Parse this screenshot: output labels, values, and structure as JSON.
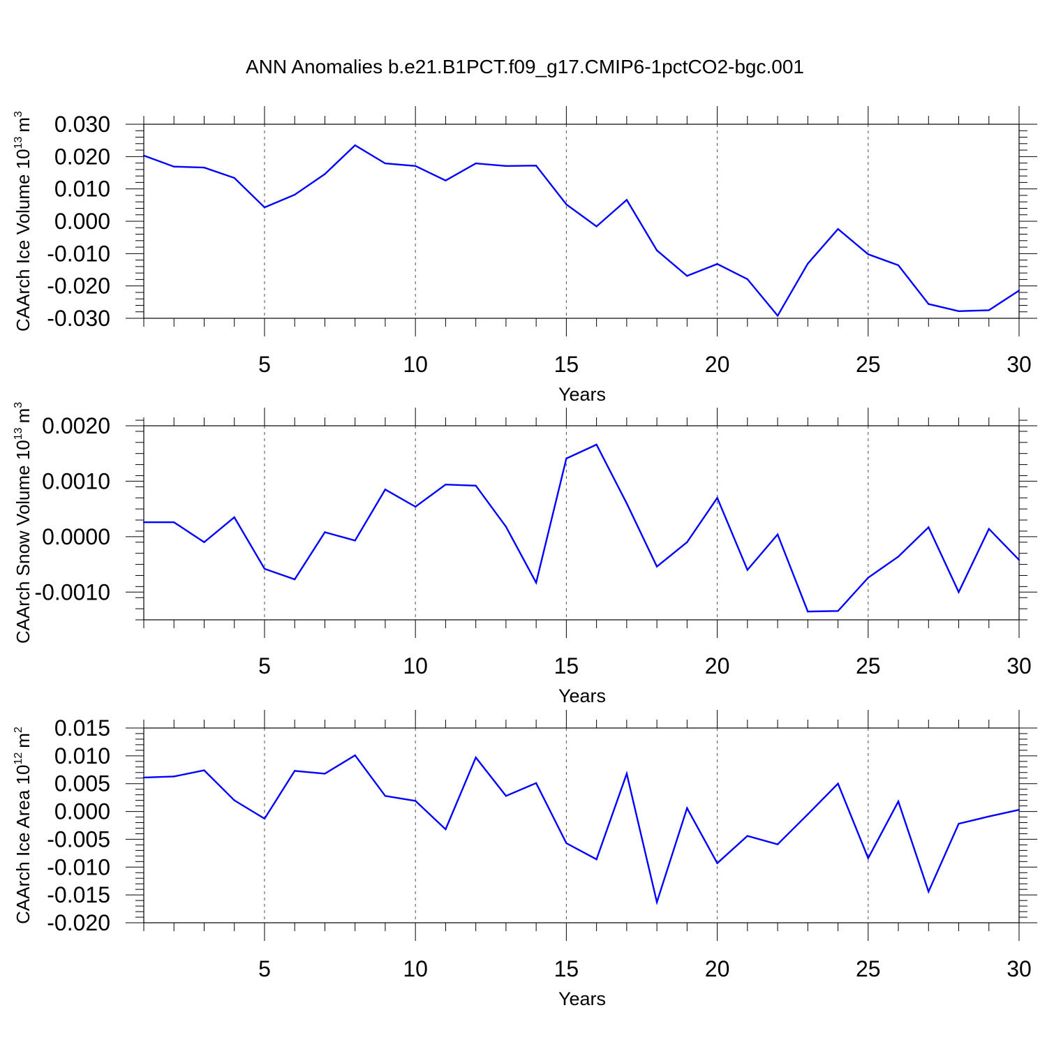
{
  "figure": {
    "title": "ANN Anomalies b.e21.B1PCT.f09_g17.CMIP6-1pctCO2-bgc.001"
  },
  "chart_data": [
    {
      "type": "line",
      "title": "",
      "xlabel": "Years",
      "ylabel": "CAArch Ice Volume 10",
      "ylabel_sup": "13",
      "ylabel_unit": "m",
      "ylabel_unit_sup": "3",
      "xlim": [
        1,
        30
      ],
      "ylim": [
        -0.03,
        0.03
      ],
      "xticks": [
        5,
        10,
        15,
        20,
        25,
        30
      ],
      "yticks": [
        -0.03,
        -0.02,
        -0.01,
        0.0,
        0.01,
        0.02,
        0.03
      ],
      "ytick_labels": [
        "-0.030",
        "-0.020",
        "-0.010",
        "0.000",
        "0.010",
        "0.020",
        "0.030"
      ],
      "yminor_step": 0.002,
      "grid": "x-dashed",
      "color": "#0000ff",
      "x": [
        1,
        2,
        3,
        4,
        5,
        6,
        7,
        8,
        9,
        10,
        11,
        12,
        13,
        14,
        15,
        16,
        17,
        18,
        19,
        20,
        21,
        22,
        23,
        24,
        25,
        26,
        27,
        28,
        29,
        30
      ],
      "values": [
        0.0203,
        0.0169,
        0.0166,
        0.0134,
        0.0043,
        0.0082,
        0.0146,
        0.0235,
        0.0179,
        0.0171,
        0.0126,
        0.0179,
        0.0171,
        0.0172,
        0.0052,
        -0.0016,
        0.0066,
        -0.009,
        -0.0169,
        -0.0132,
        -0.0179,
        -0.0292,
        -0.0131,
        -0.0024,
        -0.0102,
        -0.0136,
        -0.0256,
        -0.0278,
        -0.0275,
        -0.0214
      ]
    },
    {
      "type": "line",
      "title": "",
      "xlabel": "Years",
      "ylabel": "CAArch Snow Volume 10",
      "ylabel_sup": "13",
      "ylabel_unit": "m",
      "ylabel_unit_sup": "3",
      "xlim": [
        1,
        30
      ],
      "ylim": [
        -0.0015,
        0.002
      ],
      "xticks": [
        5,
        10,
        15,
        20,
        25,
        30
      ],
      "yticks": [
        -0.001,
        0.0,
        0.001,
        0.002
      ],
      "ytick_labels": [
        "-0.0010",
        "0.0000",
        "0.0010",
        "0.0020"
      ],
      "yminor_step": 0.0002,
      "grid": "x-dashed",
      "color": "#0000ff",
      "x": [
        1,
        2,
        3,
        4,
        5,
        6,
        7,
        8,
        9,
        10,
        11,
        12,
        13,
        14,
        15,
        16,
        17,
        18,
        19,
        20,
        21,
        22,
        23,
        24,
        25,
        26,
        27,
        28,
        29,
        30
      ],
      "values": [
        0.00026,
        0.00026,
        -0.0001,
        0.00035,
        -0.00058,
        -0.00077,
        8e-05,
        -7e-05,
        0.00085,
        0.00054,
        0.00094,
        0.00092,
        0.00018,
        -0.00083,
        0.00141,
        0.00166,
        0.0006,
        -0.00054,
        -0.0001,
        0.0007,
        -0.0006,
        4e-05,
        -0.00135,
        -0.00134,
        -0.00074,
        -0.00036,
        0.00017,
        -0.001,
        0.00014,
        -0.00042
      ]
    },
    {
      "type": "line",
      "title": "",
      "xlabel": "Years",
      "ylabel": "CAArch Ice Area 10",
      "ylabel_sup": "12",
      "ylabel_unit": "m",
      "ylabel_unit_sup": "2",
      "xlim": [
        1,
        30
      ],
      "ylim": [
        -0.02,
        0.015
      ],
      "xticks": [
        5,
        10,
        15,
        20,
        25,
        30
      ],
      "yticks": [
        -0.02,
        -0.015,
        -0.01,
        -0.005,
        0.0,
        0.005,
        0.01,
        0.015
      ],
      "ytick_labels": [
        "-0.020",
        "-0.015",
        "-0.010",
        "-0.005",
        "0.000",
        "0.005",
        "0.010",
        "0.015"
      ],
      "yminor_step": 0.001,
      "grid": "x-dashed",
      "color": "#0000ff",
      "x": [
        1,
        2,
        3,
        4,
        5,
        6,
        7,
        8,
        9,
        10,
        11,
        12,
        13,
        14,
        15,
        16,
        17,
        18,
        19,
        20,
        21,
        22,
        23,
        24,
        25,
        26,
        27,
        28,
        29,
        30
      ],
      "values": [
        0.0061,
        0.0063,
        0.0074,
        0.002,
        -0.0013,
        0.0073,
        0.0068,
        0.0101,
        0.0028,
        0.0019,
        -0.0032,
        0.0097,
        0.0028,
        0.0051,
        -0.0057,
        -0.0086,
        0.0068,
        -0.0163,
        0.0006,
        -0.0093,
        -0.0044,
        -0.0059,
        -0.0005,
        0.005,
        -0.0084,
        0.0018,
        -0.0144,
        -0.0022,
        -0.0009,
        0.0003
      ]
    }
  ]
}
